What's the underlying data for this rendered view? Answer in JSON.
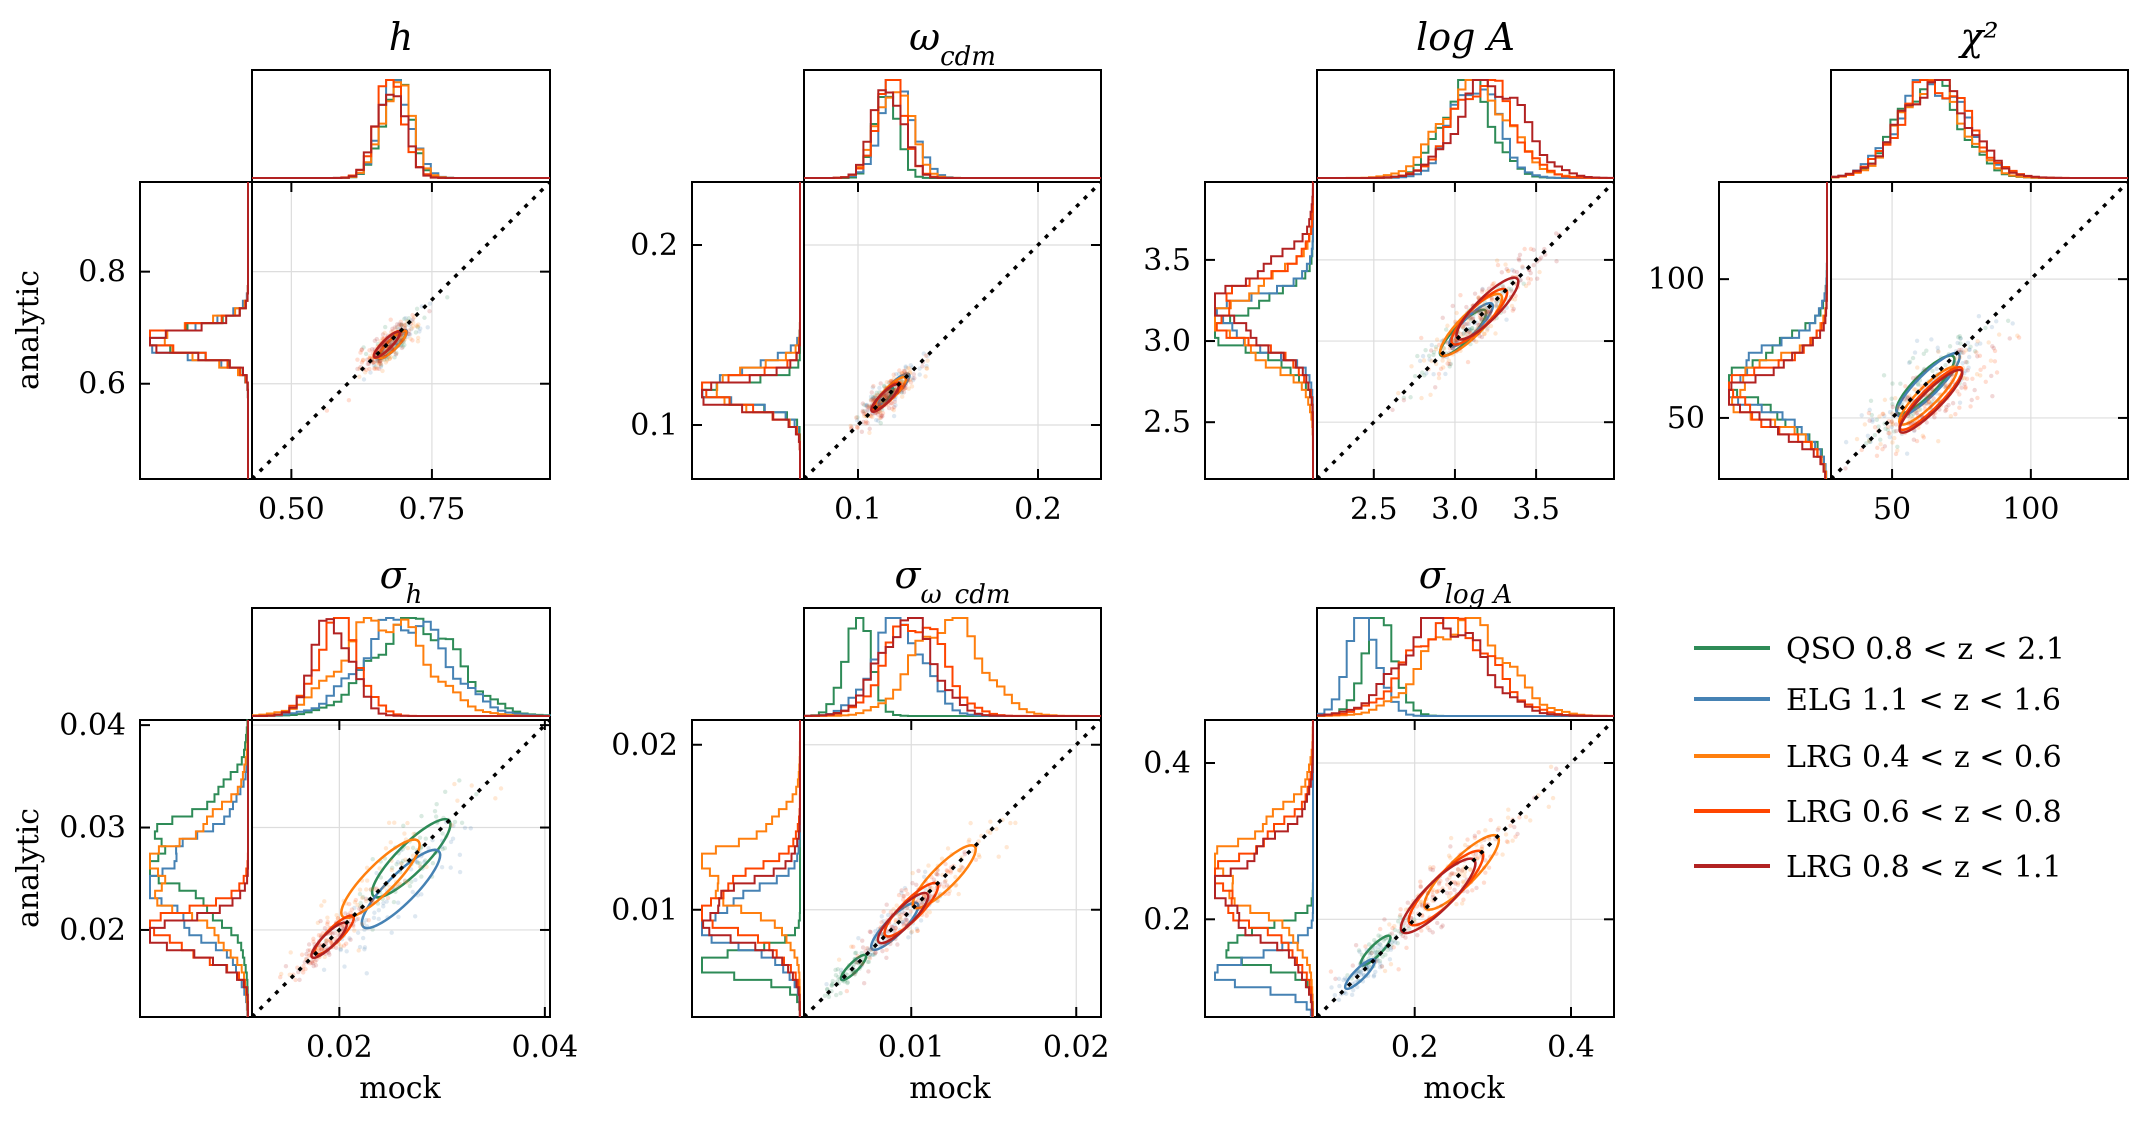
{
  "figure": {
    "xlabel": "mock",
    "ylabel": "analytic"
  },
  "legend": {
    "placement": "bottom-right",
    "entries": [
      {
        "label": "QSO 0.8 < z < 2.1",
        "color": "#2e8b57"
      },
      {
        "label": "ELG 1.1 < z < 1.6",
        "color": "#4682b4"
      },
      {
        "label": "LRG 0.4 < z < 0.6",
        "color": "#ff7f0e"
      },
      {
        "label": "LRG 0.6 < z < 0.8",
        "color": "#ff4500"
      },
      {
        "label": "LRG 0.8 < z < 1.1",
        "color": "#b22222"
      }
    ]
  },
  "chart_data": [
    {
      "type": "scatter",
      "title": "h",
      "lim": [
        0.43,
        0.96
      ],
      "ticks": [
        0.5,
        0.75
      ],
      "xtick_labels": [
        "0.50",
        "0.75"
      ],
      "yticks": [
        0.6,
        0.8
      ],
      "ytick_labels": [
        "0.6",
        "0.8"
      ],
      "grid": true,
      "identity_line": true,
      "series": [
        {
          "color": "#2e8b57",
          "mean": [
            0.68,
            0.67
          ],
          "sd": [
            0.025,
            0.024
          ],
          "corr": 0.85
        },
        {
          "color": "#4682b4",
          "mean": [
            0.68,
            0.67
          ],
          "sd": [
            0.027,
            0.026
          ],
          "corr": 0.85
        },
        {
          "color": "#ff7f0e",
          "mean": [
            0.68,
            0.67
          ],
          "sd": [
            0.026,
            0.025
          ],
          "corr": 0.85
        },
        {
          "color": "#ff4500",
          "mean": [
            0.67,
            0.67
          ],
          "sd": [
            0.025,
            0.024
          ],
          "corr": 0.85
        },
        {
          "color": "#b22222",
          "mean": [
            0.67,
            0.67
          ],
          "sd": [
            0.024,
            0.023
          ],
          "corr": 0.85
        }
      ]
    },
    {
      "type": "scatter",
      "title": "ω_cdm",
      "lim": [
        0.07,
        0.235
      ],
      "ticks": [
        0.1,
        0.2
      ],
      "xtick_labels": [
        "0.1",
        "0.2"
      ],
      "yticks": [
        0.1,
        0.2
      ],
      "ytick_labels": [
        "0.1",
        "0.2"
      ],
      "grid": true,
      "identity_line": true,
      "series": [
        {
          "color": "#2e8b57",
          "mean": [
            0.114,
            0.115
          ],
          "sd": [
            0.006,
            0.006
          ],
          "corr": 0.85
        },
        {
          "color": "#4682b4",
          "mean": [
            0.12,
            0.12
          ],
          "sd": [
            0.009,
            0.009
          ],
          "corr": 0.85
        },
        {
          "color": "#ff7f0e",
          "mean": [
            0.118,
            0.118
          ],
          "sd": [
            0.009,
            0.009
          ],
          "corr": 0.85
        },
        {
          "color": "#ff4500",
          "mean": [
            0.116,
            0.116
          ],
          "sd": [
            0.008,
            0.008
          ],
          "corr": 0.85
        },
        {
          "color": "#b22222",
          "mean": [
            0.115,
            0.115
          ],
          "sd": [
            0.008,
            0.008
          ],
          "corr": 0.85
        }
      ]
    },
    {
      "type": "scatter",
      "title": "log A",
      "lim": [
        2.15,
        3.98
      ],
      "ticks": [
        2.5,
        3.0,
        3.5
      ],
      "xtick_labels": [
        "2.5",
        "3.0",
        "3.5"
      ],
      "yticks": [
        2.5,
        3.0,
        3.5
      ],
      "ytick_labels": [
        "2.5",
        "3.0",
        "3.5"
      ],
      "grid": true,
      "identity_line": true,
      "series": [
        {
          "color": "#2e8b57",
          "mean": [
            3.05,
            3.05
          ],
          "sd": [
            0.15,
            0.15
          ],
          "corr": 0.9
        },
        {
          "color": "#4682b4",
          "mean": [
            3.1,
            3.1
          ],
          "sd": [
            0.14,
            0.14
          ],
          "corr": 0.9
        },
        {
          "color": "#ff7f0e",
          "mean": [
            3.1,
            3.1
          ],
          "sd": [
            0.2,
            0.2
          ],
          "corr": 0.9
        },
        {
          "color": "#ff4500",
          "mean": [
            3.15,
            3.15
          ],
          "sd": [
            0.18,
            0.18
          ],
          "corr": 0.9
        },
        {
          "color": "#b22222",
          "mean": [
            3.2,
            3.2
          ],
          "sd": [
            0.2,
            0.2
          ],
          "corr": 0.9
        }
      ]
    },
    {
      "type": "scatter",
      "title": "χ²",
      "lim": [
        28,
        135
      ],
      "ticks": [
        50,
        100
      ],
      "xtick_labels": [
        "50",
        "100"
      ],
      "yticks": [
        50,
        100
      ],
      "ytick_labels": [
        "50",
        "100"
      ],
      "grid": true,
      "identity_line": true,
      "series": [
        {
          "color": "#2e8b57",
          "mean": [
            62,
            62
          ],
          "sd": [
            11,
            11
          ],
          "corr": 0.8
        },
        {
          "color": "#4682b4",
          "mean": [
            63,
            62
          ],
          "sd": [
            12,
            11
          ],
          "corr": 0.8
        },
        {
          "color": "#ff7f0e",
          "mean": [
            63,
            58
          ],
          "sd": [
            11,
            10
          ],
          "corr": 0.8
        },
        {
          "color": "#ff4500",
          "mean": [
            64,
            57
          ],
          "sd": [
            12,
            10
          ],
          "corr": 0.8
        },
        {
          "color": "#b22222",
          "mean": [
            64,
            56
          ],
          "sd": [
            12,
            10
          ],
          "corr": 0.8
        }
      ]
    },
    {
      "type": "scatter",
      "title": "σ_h",
      "lim": [
        0.0115,
        0.0405
      ],
      "ticks": [
        0.02,
        0.04
      ],
      "xtick_labels": [
        "0.02",
        "0.04"
      ],
      "yticks": [
        0.02,
        0.03,
        0.04
      ],
      "ytick_labels": [
        "0.02",
        "0.03",
        "0.04"
      ],
      "grid": true,
      "identity_line": true,
      "series": [
        {
          "color": "#2e8b57",
          "mean": [
            0.027,
            0.027
          ],
          "sd": [
            0.004,
            0.004
          ],
          "corr": 0.9
        },
        {
          "color": "#4682b4",
          "mean": [
            0.026,
            0.024
          ],
          "sd": [
            0.004,
            0.004
          ],
          "corr": 0.9
        },
        {
          "color": "#ff7f0e",
          "mean": [
            0.024,
            0.025
          ],
          "sd": [
            0.004,
            0.004
          ],
          "corr": 0.9
        },
        {
          "color": "#ff4500",
          "mean": [
            0.0195,
            0.0195
          ],
          "sd": [
            0.002,
            0.002
          ],
          "corr": 0.9
        },
        {
          "color": "#b22222",
          "mean": [
            0.019,
            0.019
          ],
          "sd": [
            0.0018,
            0.0018
          ],
          "corr": 0.9
        }
      ]
    },
    {
      "type": "scatter",
      "title": "σ_ω_cdm",
      "lim": [
        0.0035,
        0.0215
      ],
      "ticks": [
        0.01,
        0.02
      ],
      "xtick_labels": [
        "0.01",
        "0.02"
      ],
      "yticks": [
        0.01,
        0.02
      ],
      "ytick_labels": [
        "0.01",
        "0.02"
      ],
      "grid": true,
      "identity_line": true,
      "series": [
        {
          "color": "#2e8b57",
          "mean": [
            0.0065,
            0.0065
          ],
          "sd": [
            0.0008,
            0.0008
          ],
          "corr": 0.9
        },
        {
          "color": "#4682b4",
          "mean": [
            0.009,
            0.009
          ],
          "sd": [
            0.0015,
            0.0015
          ],
          "corr": 0.9
        },
        {
          "color": "#ff7f0e",
          "mean": [
            0.012,
            0.012
          ],
          "sd": [
            0.002,
            0.002
          ],
          "corr": 0.9
        },
        {
          "color": "#ff4500",
          "mean": [
            0.01,
            0.01
          ],
          "sd": [
            0.0017,
            0.0017
          ],
          "corr": 0.9
        },
        {
          "color": "#b22222",
          "mean": [
            0.0095,
            0.0095
          ],
          "sd": [
            0.0016,
            0.0016
          ],
          "corr": 0.9
        }
      ]
    },
    {
      "type": "scatter",
      "title": "σ_log A",
      "lim": [
        0.075,
        0.455
      ],
      "ticks": [
        0.2,
        0.4
      ],
      "xtick_labels": [
        "0.2",
        "0.4"
      ],
      "yticks": [
        0.2,
        0.4
      ],
      "ytick_labels": [
        "0.2",
        "0.4"
      ],
      "grid": true,
      "identity_line": true,
      "series": [
        {
          "color": "#2e8b57",
          "mean": [
            0.15,
            0.16
          ],
          "sd": [
            0.02,
            0.02
          ],
          "corr": 0.85
        },
        {
          "color": "#4682b4",
          "mean": [
            0.13,
            0.13
          ],
          "sd": [
            0.02,
            0.02
          ],
          "corr": 0.85
        },
        {
          "color": "#ff7f0e",
          "mean": [
            0.26,
            0.26
          ],
          "sd": [
            0.05,
            0.05
          ],
          "corr": 0.9
        },
        {
          "color": "#ff4500",
          "mean": [
            0.24,
            0.24
          ],
          "sd": [
            0.05,
            0.05
          ],
          "corr": 0.9
        },
        {
          "color": "#b22222",
          "mean": [
            0.23,
            0.23
          ],
          "sd": [
            0.05,
            0.05
          ],
          "corr": 0.9
        }
      ]
    }
  ]
}
